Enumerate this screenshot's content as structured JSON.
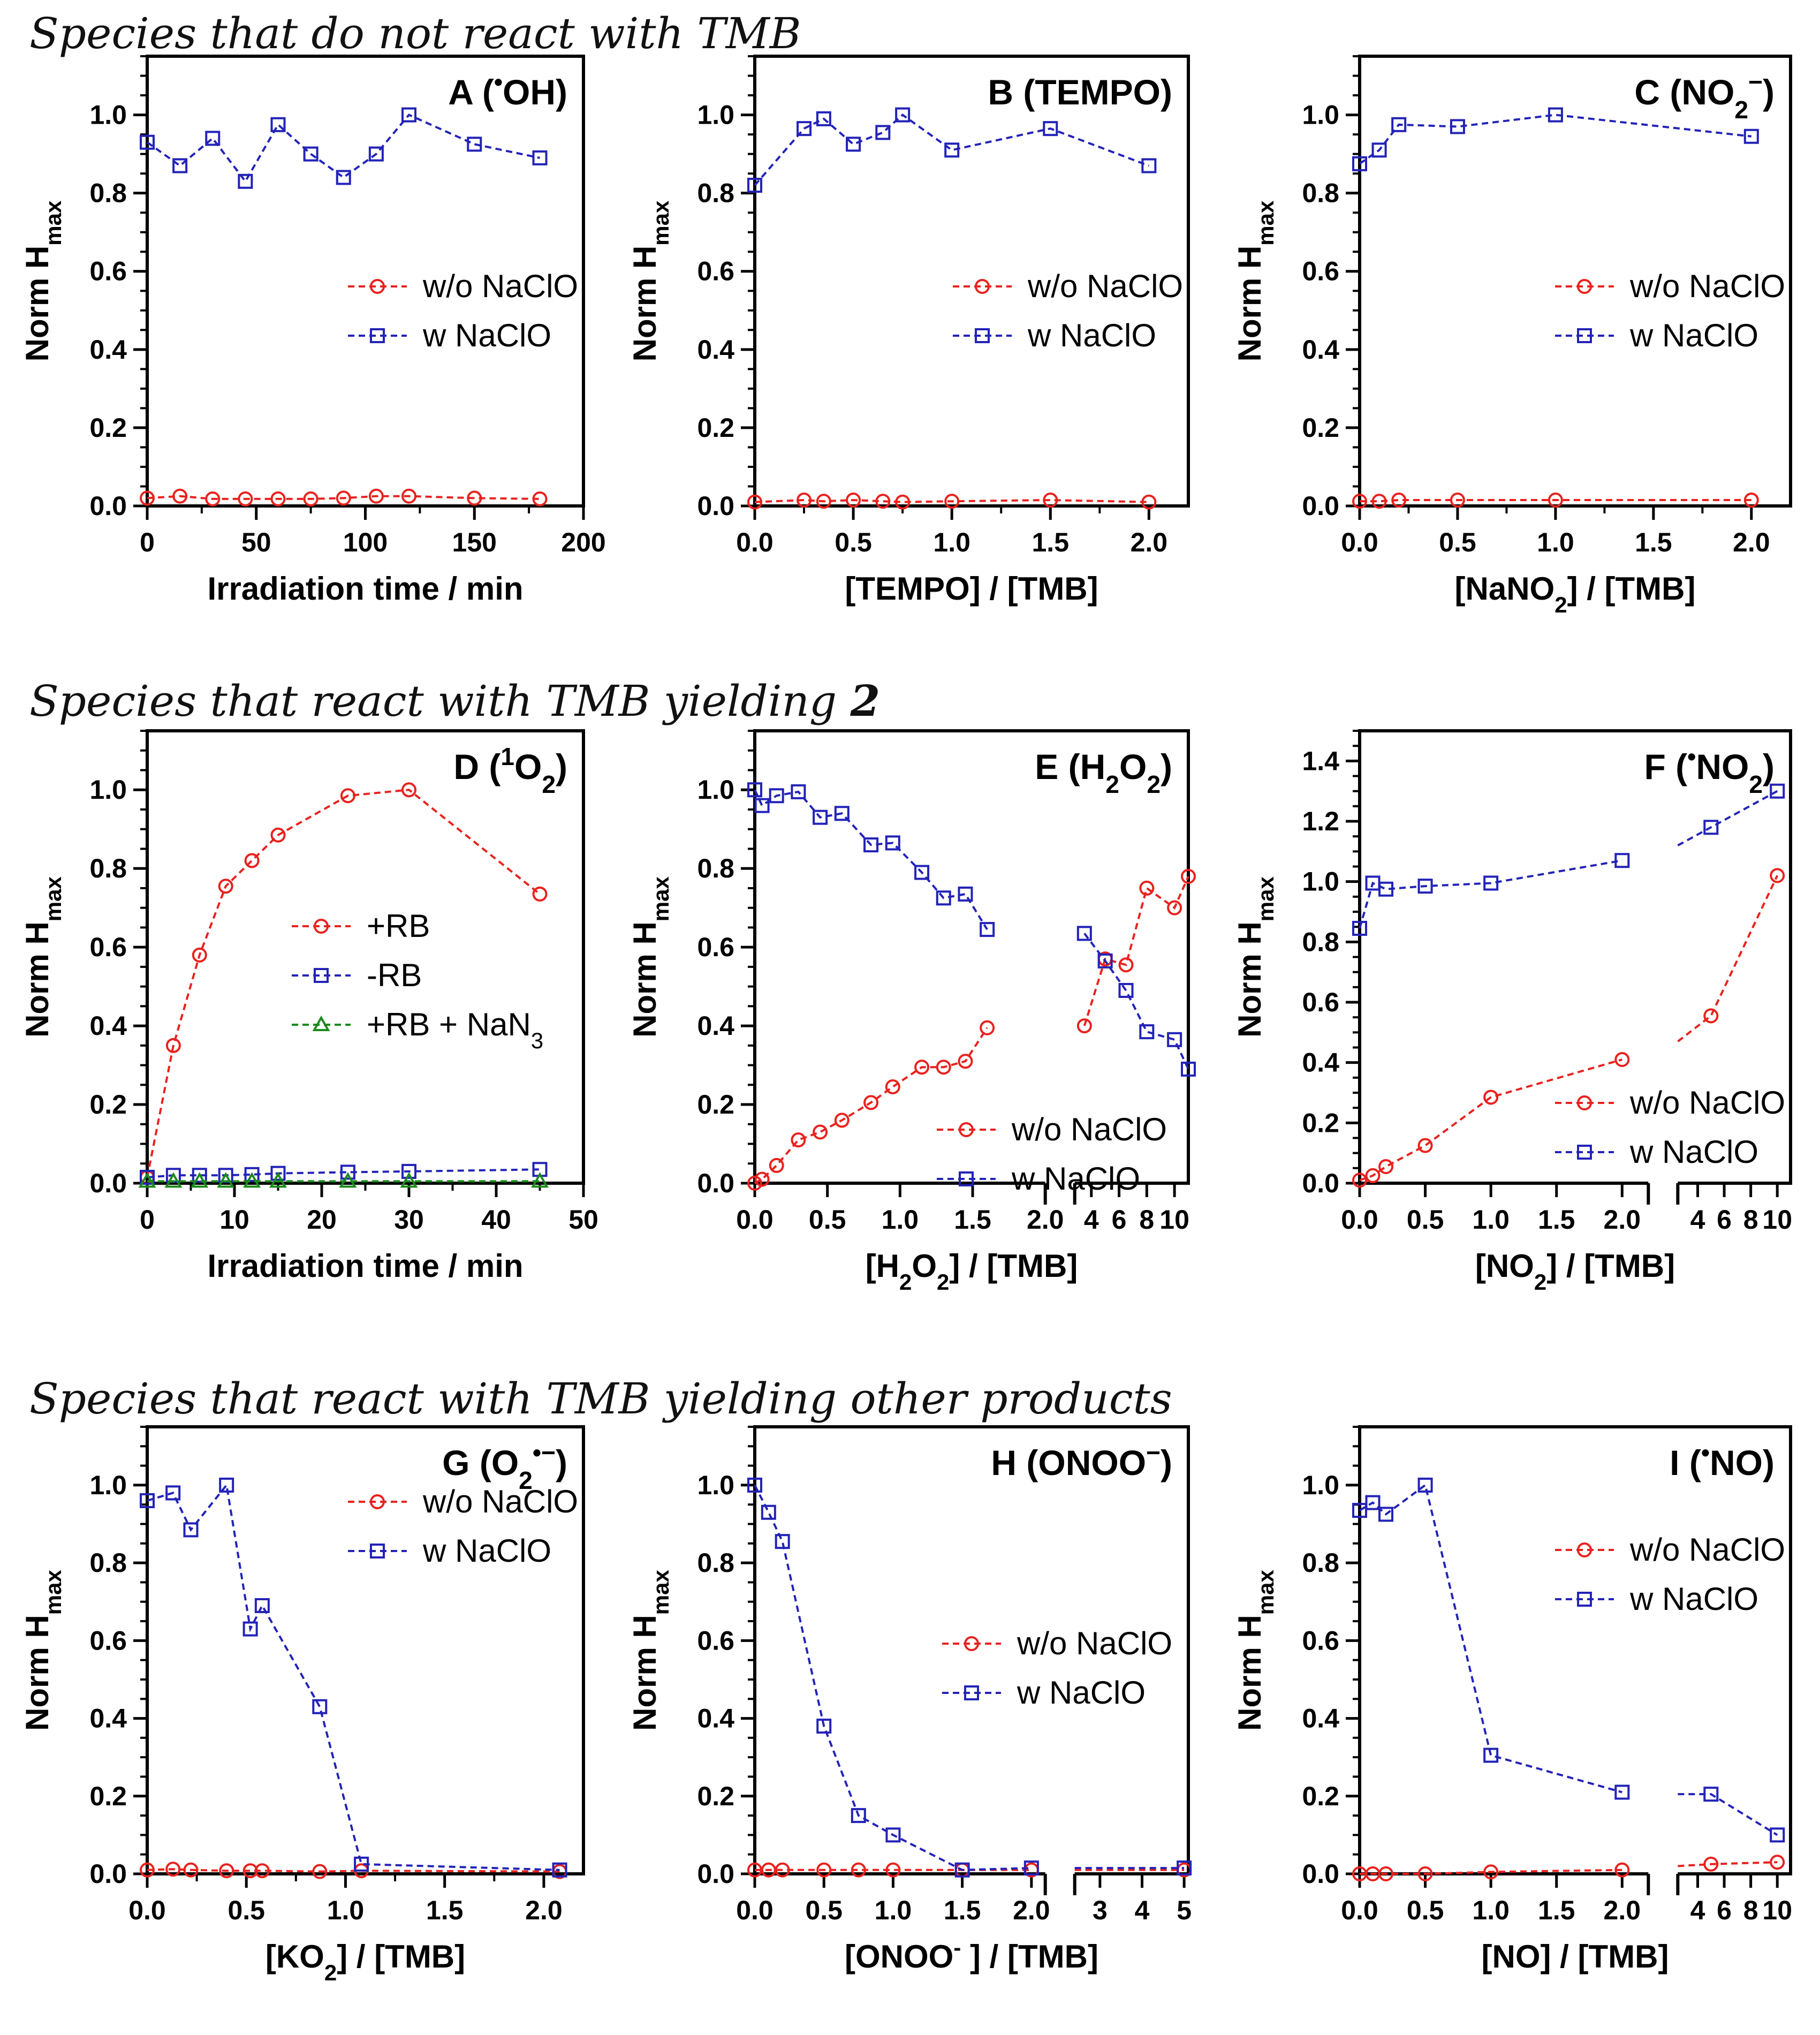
{
  "sections": [
    {
      "text": "Species that do not react with TMB",
      "bold_suffix": ""
    },
    {
      "text": "Species that react with TMB yielding ",
      "bold_suffix": "2"
    },
    {
      "text": "Species that react with TMB yielding other products",
      "bold_suffix": ""
    }
  ],
  "colors": {
    "red": "#e8221e",
    "blue": "#2323b8",
    "green": "#1a8a1a",
    "axis": "#000000"
  },
  "chart_data": [
    {
      "id": "A",
      "type": "line",
      "title": "A",
      "title_species": "(•OH)",
      "ylabel": "Norm Hmax",
      "xlabel": "Irradiation time / min",
      "xlim": [
        0,
        200
      ],
      "ylim": [
        0,
        1.15
      ],
      "xticks": [
        0,
        50,
        100,
        150,
        200
      ],
      "xtick_labels": [
        "0",
        "50",
        "100",
        "150",
        "200"
      ],
      "yticks": [
        0,
        0.2,
        0.4,
        0.6,
        0.8,
        1.0
      ],
      "ytick_labels": [
        "0.0",
        "0.2",
        "0.4",
        "0.6",
        "0.8",
        "1.0"
      ],
      "legend_position": "center-right",
      "series": [
        {
          "name": "w/o NaClO",
          "color": "red",
          "marker": "circle",
          "x": [
            0,
            15,
            30,
            45,
            60,
            75,
            90,
            105,
            120,
            150,
            180
          ],
          "y": [
            0.02,
            0.025,
            0.018,
            0.018,
            0.018,
            0.018,
            0.02,
            0.025,
            0.025,
            0.02,
            0.018
          ]
        },
        {
          "name": "w NaClO",
          "color": "blue",
          "marker": "square",
          "x": [
            0,
            15,
            30,
            45,
            60,
            75,
            90,
            105,
            120,
            150,
            180
          ],
          "y": [
            0.93,
            0.87,
            0.94,
            0.83,
            0.975,
            0.9,
            0.84,
            0.9,
            1.0,
            0.925,
            0.89
          ]
        }
      ]
    },
    {
      "id": "B",
      "type": "line",
      "title": "B",
      "title_species": "(TEMPO)",
      "ylabel": "Norm Hmax",
      "xlabel": "[TEMPO] / [TMB]",
      "xlim": [
        0,
        2.2
      ],
      "ylim": [
        0,
        1.15
      ],
      "xticks": [
        0,
        0.5,
        1.0,
        1.5,
        2.0
      ],
      "xtick_labels": [
        "0.0",
        "0.5",
        "1.0",
        "1.5",
        "2.0"
      ],
      "yticks": [
        0,
        0.2,
        0.4,
        0.6,
        0.8,
        1.0
      ],
      "ytick_labels": [
        "0.0",
        "0.2",
        "0.4",
        "0.6",
        "0.8",
        "1.0"
      ],
      "legend_position": "center-right",
      "series": [
        {
          "name": "w/o NaClO",
          "color": "red",
          "marker": "circle",
          "x": [
            0,
            0.25,
            0.35,
            0.5,
            0.65,
            0.75,
            1.0,
            1.5,
            2.0
          ],
          "y": [
            0.01,
            0.015,
            0.012,
            0.015,
            0.012,
            0.01,
            0.012,
            0.015,
            0.01
          ]
        },
        {
          "name": "w NaClO",
          "color": "blue",
          "marker": "square",
          "x": [
            0,
            0.25,
            0.35,
            0.5,
            0.65,
            0.75,
            1.0,
            1.5,
            2.0
          ],
          "y": [
            0.82,
            0.965,
            0.99,
            0.925,
            0.955,
            1.0,
            0.91,
            0.965,
            0.87
          ]
        }
      ]
    },
    {
      "id": "C",
      "type": "line",
      "title": "C",
      "title_species": "(NO2−)",
      "ylabel": "Norm Hmax",
      "xlabel": "[NaNO2] / [TMB]",
      "xlim": [
        0,
        2.2
      ],
      "ylim": [
        0,
        1.15
      ],
      "xticks": [
        0,
        0.5,
        1.0,
        1.5,
        2.0
      ],
      "xtick_labels": [
        "0.0",
        "0.5",
        "1.0",
        "1.5",
        "2.0"
      ],
      "yticks": [
        0,
        0.2,
        0.4,
        0.6,
        0.8,
        1.0
      ],
      "ytick_labels": [
        "0.0",
        "0.2",
        "0.4",
        "0.6",
        "0.8",
        "1.0"
      ],
      "legend_position": "center-right",
      "series": [
        {
          "name": "w/o NaClO",
          "color": "red",
          "marker": "circle",
          "x": [
            0,
            0.1,
            0.2,
            0.5,
            1.0,
            2.0
          ],
          "y": [
            0.012,
            0.012,
            0.015,
            0.015,
            0.015,
            0.015
          ]
        },
        {
          "name": "w NaClO",
          "color": "blue",
          "marker": "square",
          "x": [
            0,
            0.1,
            0.2,
            0.5,
            1.0,
            2.0
          ],
          "y": [
            0.875,
            0.91,
            0.975,
            0.97,
            1.0,
            0.945
          ]
        }
      ]
    },
    {
      "id": "D",
      "type": "line",
      "title": "D",
      "title_species": "(1O2)",
      "ylabel": "Norm Hmax",
      "xlabel": "Irradiation time / min",
      "xlim": [
        0,
        50
      ],
      "ylim": [
        0,
        1.15
      ],
      "xticks": [
        0,
        10,
        20,
        30,
        40,
        50
      ],
      "xtick_labels": [
        "0",
        "10",
        "20",
        "30",
        "40",
        "50"
      ],
      "yticks": [
        0,
        0.2,
        0.4,
        0.6,
        0.8,
        1.0
      ],
      "ytick_labels": [
        "0.0",
        "0.2",
        "0.4",
        "0.6",
        "0.8",
        "1.0"
      ],
      "legend_position": "center",
      "series": [
        {
          "name": "+RB",
          "color": "red",
          "marker": "circle",
          "x": [
            0,
            3,
            6,
            9,
            12,
            15,
            23,
            30,
            45
          ],
          "y": [
            0.015,
            0.35,
            0.58,
            0.755,
            0.82,
            0.885,
            0.985,
            1.0,
            0.735
          ]
        },
        {
          "name": "-RB",
          "color": "blue",
          "marker": "square",
          "x": [
            0,
            3,
            6,
            9,
            12,
            15,
            23,
            30,
            45
          ],
          "y": [
            0.015,
            0.02,
            0.02,
            0.02,
            0.022,
            0.025,
            0.028,
            0.03,
            0.035
          ]
        },
        {
          "name": "+RB + NaN3",
          "color": "green",
          "marker": "triangle",
          "x": [
            0,
            3,
            6,
            9,
            12,
            15,
            23,
            30,
            45
          ],
          "y": [
            0.005,
            0.005,
            0.005,
            0.005,
            0.005,
            0.005,
            0.005,
            0.005,
            0.005
          ]
        }
      ]
    },
    {
      "id": "E",
      "type": "line",
      "title": "E",
      "title_species": "(H2O2)",
      "ylabel": "Norm Hmax",
      "xlabel": "[H2O2] / [TMB]",
      "axis_break": true,
      "seg1_xlim": [
        0,
        2.0
      ],
      "seg2_xlim": [
        2.8,
        11
      ],
      "ylim": [
        0,
        1.15
      ],
      "xticks_seg1": [
        0,
        0.5,
        1.0,
        1.5,
        2.0
      ],
      "xtick_labels_seg1": [
        "0.0",
        "0.5",
        "1.0",
        "1.5",
        "2.0"
      ],
      "xticks_seg2": [
        4,
        6,
        8,
        10
      ],
      "xtick_labels_seg2": [
        "4",
        "6",
        "8",
        "10"
      ],
      "yticks": [
        0,
        0.2,
        0.4,
        0.6,
        0.8,
        1.0
      ],
      "ytick_labels": [
        "0.0",
        "0.2",
        "0.4",
        "0.6",
        "0.8",
        "1.0"
      ],
      "legend_position": "bottom-right",
      "series": [
        {
          "name": "w/o NaClO",
          "color": "red",
          "marker": "circle",
          "x": [
            0,
            0.05,
            0.15,
            0.3,
            0.45,
            0.6,
            0.8,
            0.95,
            1.15,
            1.3,
            1.45,
            1.6,
            3.5,
            5,
            6.5,
            8,
            10,
            11
          ],
          "y": [
            0.0,
            0.01,
            0.045,
            0.11,
            0.13,
            0.16,
            0.205,
            0.245,
            0.295,
            0.295,
            0.31,
            0.395,
            0.4,
            0.57,
            0.555,
            0.75,
            0.7,
            0.78
          ]
        },
        {
          "name": "w NaClO",
          "color": "blue",
          "marker": "square",
          "x": [
            0,
            0.05,
            0.15,
            0.3,
            0.45,
            0.6,
            0.8,
            0.95,
            1.15,
            1.3,
            1.45,
            1.6,
            3.5,
            5,
            6.5,
            8,
            10,
            11
          ],
          "y": [
            1.0,
            0.96,
            0.985,
            0.995,
            0.93,
            0.94,
            0.86,
            0.865,
            0.79,
            0.725,
            0.735,
            0.645,
            0.635,
            0.565,
            0.49,
            0.385,
            0.365,
            0.29
          ]
        }
      ]
    },
    {
      "id": "F",
      "type": "line",
      "title": "F",
      "title_species": "(•NO2)",
      "ylabel": "Norm Hmax",
      "xlabel": "[NO2] / [TMB]",
      "axis_break": true,
      "seg1_xlim": [
        0,
        2.2
      ],
      "seg2_xlim": [
        2.5,
        11
      ],
      "ylim": [
        0,
        1.5
      ],
      "xticks_seg1": [
        0,
        0.5,
        1.0,
        1.5,
        2.0
      ],
      "xtick_labels_seg1": [
        "0.0",
        "0.5",
        "1.0",
        "1.5",
        "2.0"
      ],
      "xticks_seg2": [
        4,
        6,
        8,
        10
      ],
      "xtick_labels_seg2": [
        "4",
        "6",
        "8",
        "10"
      ],
      "yticks": [
        0,
        0.2,
        0.4,
        0.6,
        0.8,
        1.0,
        1.2,
        1.4
      ],
      "ytick_labels": [
        "0.0",
        "0.2",
        "0.4",
        "0.6",
        "0.8",
        "1.0",
        "1.2",
        "1.4"
      ],
      "legend_position": "bottom-right",
      "series": [
        {
          "name": "w/o NaClO",
          "color": "red",
          "marker": "circle",
          "x": [
            0,
            0.1,
            0.2,
            0.5,
            1.0,
            2.0,
            2.5,
            5,
            10
          ],
          "y": [
            0.01,
            0.025,
            0.055,
            0.125,
            0.285,
            0.41,
            0.47,
            0.555,
            1.02
          ],
          "hidden_points": [
            6
          ]
        },
        {
          "name": "w NaClO",
          "color": "blue",
          "marker": "square",
          "x": [
            0,
            0.1,
            0.2,
            0.5,
            1.0,
            2.0,
            2.5,
            5,
            10
          ],
          "y": [
            0.845,
            0.995,
            0.975,
            0.985,
            0.995,
            1.07,
            1.12,
            1.18,
            1.3
          ],
          "hidden_points": [
            6
          ]
        }
      ]
    },
    {
      "id": "G",
      "type": "line",
      "title": "G",
      "title_species": "(O2•−)",
      "ylabel": "Norm Hmax",
      "xlabel": "[KO2] / [TMB]",
      "xlim": [
        0,
        2.2
      ],
      "ylim": [
        0,
        1.15
      ],
      "xticks": [
        0,
        0.5,
        1.0,
        1.5,
        2.0
      ],
      "xtick_labels": [
        "0.0",
        "0.5",
        "1.0",
        "1.5",
        "2.0"
      ],
      "yticks": [
        0,
        0.2,
        0.4,
        0.6,
        0.8,
        1.0
      ],
      "ytick_labels": [
        "0.0",
        "0.2",
        "0.4",
        "0.6",
        "0.8",
        "1.0"
      ],
      "legend_position": "center-right",
      "series": [
        {
          "name": "w/o NaClO",
          "color": "red",
          "marker": "circle",
          "x": [
            0,
            0.13,
            0.22,
            0.4,
            0.52,
            0.58,
            0.87,
            1.08,
            2.08
          ],
          "y": [
            0.01,
            0.012,
            0.01,
            0.008,
            0.008,
            0.008,
            0.006,
            0.008,
            0.006
          ]
        },
        {
          "name": "w NaClO",
          "color": "blue",
          "marker": "square",
          "x": [
            0,
            0.13,
            0.22,
            0.4,
            0.52,
            0.58,
            0.87,
            1.08,
            2.08
          ],
          "y": [
            0.96,
            0.98,
            0.885,
            1.0,
            0.63,
            0.69,
            0.43,
            0.025,
            0.01
          ]
        }
      ]
    },
    {
      "id": "H",
      "type": "line",
      "title": "H",
      "title_species": "(ONOO−)",
      "ylabel": "Norm Hmax",
      "xlabel": "[ONOO-] / [TMB]",
      "axis_break": true,
      "seg1_xlim": [
        0,
        2.1
      ],
      "seg2_xlim": [
        2.4,
        5.1
      ],
      "ylim": [
        0,
        1.15
      ],
      "xticks_seg1": [
        0,
        0.5,
        1.0,
        1.5,
        2.0
      ],
      "xtick_labels_seg1": [
        "0.0",
        "0.5",
        "1.0",
        "1.5",
        "2.0"
      ],
      "xticks_seg2": [
        3,
        4,
        5
      ],
      "xtick_labels_seg2": [
        "3",
        "4",
        "5"
      ],
      "yticks": [
        0,
        0.2,
        0.4,
        0.6,
        0.8,
        1.0
      ],
      "ytick_labels": [
        "0.0",
        "0.2",
        "0.4",
        "0.6",
        "0.8",
        "1.0"
      ],
      "legend_position": "center-right",
      "series": [
        {
          "name": "w/o NaClO",
          "color": "red",
          "marker": "circle",
          "x": [
            0,
            0.1,
            0.2,
            0.5,
            0.75,
            1.0,
            1.5,
            2.0,
            2.4,
            5
          ],
          "y": [
            0.01,
            0.01,
            0.01,
            0.01,
            0.01,
            0.01,
            0.01,
            0.01,
            0.01,
            0.01
          ],
          "hidden_points": [
            8
          ]
        },
        {
          "name": "w NaClO",
          "color": "blue",
          "marker": "square",
          "x": [
            0,
            0.1,
            0.2,
            0.5,
            0.75,
            1.0,
            1.5,
            2.0,
            2.4,
            5
          ],
          "y": [
            1.0,
            0.93,
            0.855,
            0.38,
            0.15,
            0.1,
            0.01,
            0.015,
            0.015,
            0.015
          ],
          "hidden_points": [
            8
          ]
        }
      ]
    },
    {
      "id": "I",
      "type": "line",
      "title": "I",
      "title_species": "(•NO)",
      "ylabel": "Norm Hmax",
      "xlabel": "[NO] / [TMB]",
      "axis_break": true,
      "seg1_xlim": [
        0,
        2.2
      ],
      "seg2_xlim": [
        2.5,
        11
      ],
      "ylim": [
        0,
        1.15
      ],
      "xticks_seg1": [
        0,
        0.5,
        1.0,
        1.5,
        2.0
      ],
      "xtick_labels_seg1": [
        "0.0",
        "0.5",
        "1.0",
        "1.5",
        "2.0"
      ],
      "xticks_seg2": [
        4,
        6,
        8,
        10
      ],
      "xtick_labels_seg2": [
        "4",
        "6",
        "8",
        "10"
      ],
      "yticks": [
        0,
        0.2,
        0.4,
        0.6,
        0.8,
        1.0
      ],
      "ytick_labels": [
        "0.0",
        "0.2",
        "0.4",
        "0.6",
        "0.8",
        "1.0"
      ],
      "legend_position": "center-right",
      "series": [
        {
          "name": "w/o NaClO",
          "color": "red",
          "marker": "circle",
          "x": [
            0,
            0.1,
            0.2,
            0.5,
            1.0,
            2.0,
            2.5,
            5,
            10
          ],
          "y": [
            0.0,
            0.0,
            0.0,
            0.0,
            0.005,
            0.01,
            0.02,
            0.025,
            0.03
          ],
          "hidden_points": [
            6
          ]
        },
        {
          "name": "w NaClO",
          "color": "blue",
          "marker": "square",
          "x": [
            0,
            0.1,
            0.2,
            0.5,
            1.0,
            2.0,
            2.5,
            5,
            10
          ],
          "y": [
            0.935,
            0.955,
            0.925,
            1.0,
            0.305,
            0.21,
            0.205,
            0.205,
            0.1
          ],
          "hidden_points": [
            6
          ]
        }
      ]
    }
  ]
}
